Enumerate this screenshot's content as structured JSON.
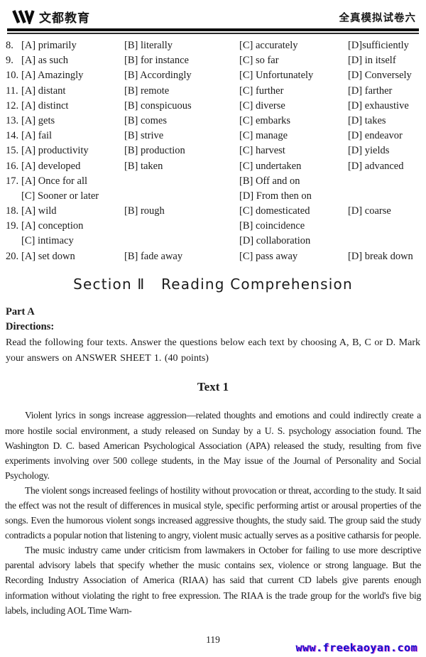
{
  "header": {
    "logo_text": "文都教育",
    "paper_title": "全真模拟试卷六"
  },
  "questions": {
    "lines": [
      {
        "num": "8.",
        "cells": [
          {
            "col": 0,
            "text": "[A] primarily"
          },
          {
            "col": 1,
            "text": "[B] literally"
          },
          {
            "col": 2,
            "text": "[C] accurately"
          },
          {
            "col": 3,
            "text": "[D]sufficiently"
          }
        ]
      },
      {
        "num": "9.",
        "cells": [
          {
            "col": 0,
            "text": "[A] as such"
          },
          {
            "col": 1,
            "text": "[B] for instance"
          },
          {
            "col": 2,
            "text": "[C] so far"
          },
          {
            "col": 3,
            "text": "[D] in itself"
          }
        ]
      },
      {
        "num": "10.",
        "cells": [
          {
            "col": 0,
            "text": "[A] Amazingly"
          },
          {
            "col": 1,
            "text": "[B] Accordingly"
          },
          {
            "col": 2,
            "text": "[C] Unfortunately"
          },
          {
            "col": 3,
            "text": "[D] Conversely"
          }
        ]
      },
      {
        "num": "11.",
        "cells": [
          {
            "col": 0,
            "text": "[A] distant"
          },
          {
            "col": 1,
            "text": "[B] remote"
          },
          {
            "col": 2,
            "text": "[C] further"
          },
          {
            "col": 3,
            "text": "[D] farther"
          }
        ]
      },
      {
        "num": "12.",
        "cells": [
          {
            "col": 0,
            "text": "[A] distinct"
          },
          {
            "col": 1,
            "text": "[B] conspicuous"
          },
          {
            "col": 2,
            "text": "[C] diverse"
          },
          {
            "col": 3,
            "text": "[D] exhaustive"
          }
        ]
      },
      {
        "num": "13.",
        "cells": [
          {
            "col": 0,
            "text": "[A] gets"
          },
          {
            "col": 1,
            "text": "[B] comes"
          },
          {
            "col": 2,
            "text": "[C] embarks"
          },
          {
            "col": 3,
            "text": "[D] takes"
          }
        ]
      },
      {
        "num": "14.",
        "cells": [
          {
            "col": 0,
            "text": "[A] fail"
          },
          {
            "col": 1,
            "text": "[B] strive"
          },
          {
            "col": 2,
            "text": "[C] manage"
          },
          {
            "col": 3,
            "text": "[D] endeavor"
          }
        ]
      },
      {
        "num": "15.",
        "cells": [
          {
            "col": 0,
            "text": "[A] productivity"
          },
          {
            "col": 1,
            "text": "[B] production"
          },
          {
            "col": 2,
            "text": "[C] harvest"
          },
          {
            "col": 3,
            "text": "[D] yields"
          }
        ]
      },
      {
        "num": "16.",
        "cells": [
          {
            "col": 0,
            "text": "[A] developed"
          },
          {
            "col": 1,
            "text": "[B] taken"
          },
          {
            "col": 2,
            "text": "[C] undertaken"
          },
          {
            "col": 3,
            "text": "[D] advanced"
          }
        ]
      },
      {
        "num": "17.",
        "cells": [
          {
            "col": 0,
            "text": "[A] Once for all"
          },
          {
            "col": 2,
            "text": "[B] Off and on"
          }
        ]
      },
      {
        "num": "",
        "cells": [
          {
            "col": 0,
            "text": "[C] Sooner or later"
          },
          {
            "col": 2,
            "text": "[D] From then on"
          }
        ]
      },
      {
        "num": "18.",
        "cells": [
          {
            "col": 0,
            "text": "[A] wild"
          },
          {
            "col": 1,
            "text": "[B] rough"
          },
          {
            "col": 2,
            "text": "[C] domesticated"
          },
          {
            "col": 3,
            "text": "[D] coarse"
          }
        ]
      },
      {
        "num": "19.",
        "cells": [
          {
            "col": 0,
            "text": "[A] conception"
          },
          {
            "col": 2,
            "text": "[B] coincidence"
          }
        ]
      },
      {
        "num": "",
        "cells": [
          {
            "col": 0,
            "text": "[C] intimacy"
          },
          {
            "col": 2,
            "text": "[D] collaboration"
          }
        ]
      },
      {
        "num": "20.",
        "cells": [
          {
            "col": 0,
            "text": "[A] set down"
          },
          {
            "col": 1,
            "text": "[B] fade away"
          },
          {
            "col": 2,
            "text": "[C] pass away"
          },
          {
            "col": 3,
            "text": "[D] break down"
          }
        ]
      }
    ]
  },
  "section": {
    "title": "Section Ⅱ   Reading Comprehension"
  },
  "part_a": {
    "label": "Part A",
    "directions_label": "Directions:",
    "directions_text": "Read the following four texts. Answer the questions below each text by choosing A, B, C or D. Mark your answers on ANSWER SHEET 1. (40 points)"
  },
  "text1": {
    "title": "Text 1",
    "paragraphs": [
      "Violent lyrics in songs increase aggression—related thoughts and emotions and could indirectly create a more hostile social environment, a study released on Sunday by a U. S. psychology association found. The Washington D. C. based American Psychological Association (APA) released the study, resulting from five experiments involving over 500 college students, in the May issue of the Journal of Personality and Social Psychology.",
      "The violent songs increased feelings of hostility without provocation or threat, according to the study. It said the effect was not the result of differences in musical style, specific performing artist or arousal properties of the songs. Even the humorous violent songs increased aggressive thoughts, the study said. The group said the study contradicts a popular notion that listening to angry, violent music actually serves as a positive catharsis for people.",
      "The music industry came under criticism from lawmakers in October for failing to use more descriptive parental advisory labels that specify whether the music contains sex, violence or strong language. But the Recording Industry Association of America (RIAA) has said that current CD labels give parents enough information without violating the right to free expression. The RIAA is the trade group for the world's five big labels, including AOL Time Warn-"
    ]
  },
  "footer": {
    "page_number": "119",
    "site_link": "www.freekaoyan.com"
  },
  "colors": {
    "ink": "#1b1b1b",
    "link_blue": "#1212cc",
    "link_shadow": "#de22cd"
  }
}
